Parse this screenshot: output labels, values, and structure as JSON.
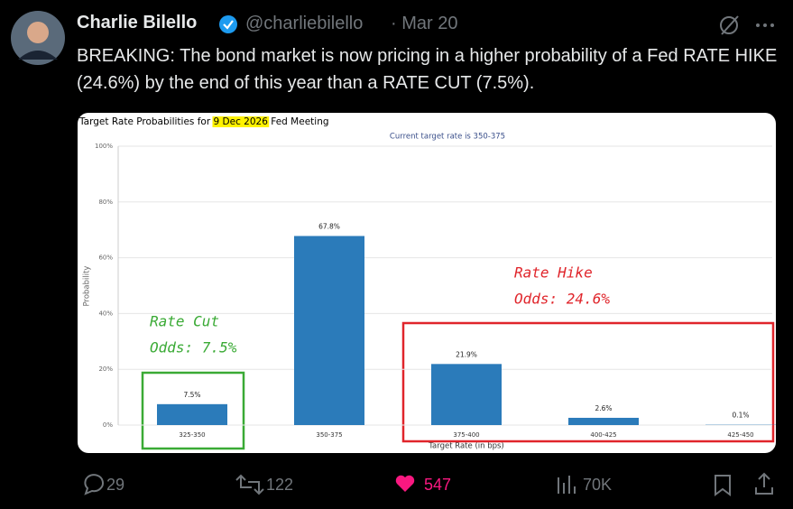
{
  "tweet": {
    "name": "Charlie Bilello",
    "handle": "@charliebilello",
    "date": "· Mar 20",
    "text": "BREAKING: The bond market is now pricing in a higher probability of a Fed RATE HIKE (24.6%) by the end of this year than a RATE CUT (7.5%).",
    "stats": {
      "replies": "29",
      "reposts": "122",
      "likes": "547",
      "views": "70K"
    }
  },
  "chart_data": {
    "type": "bar",
    "title": [
      "Target Rate Probabilities for",
      "9 Dec 2026",
      "Fed Meeting"
    ],
    "subtitle": "Current target rate is 350-375",
    "x_label": "Target Rate (in bps)",
    "y_label": "Probability",
    "categories": [
      "325-350",
      "350-375",
      "375-400",
      "400-425",
      "425-450"
    ],
    "values": [
      7.5,
      67.8,
      21.9,
      2.6,
      0.1
    ],
    "value_labels": [
      "7.5%",
      "67.8%",
      "21.9%",
      "2.6%",
      "0.1%"
    ],
    "color": "#2b7bba",
    "ylim": [
      0,
      100
    ],
    "yticks": [
      {
        "value": 0,
        "label": "0%"
      },
      {
        "value": 20,
        "label": "20%"
      },
      {
        "value": 40,
        "label": "40%"
      },
      {
        "value": 60,
        "label": "60%"
      },
      {
        "value": 80,
        "label": "80%"
      },
      {
        "value": 100,
        "label": "100%"
      }
    ],
    "annotations": [
      {
        "lines": [
          "Rate Cut",
          "Odds: 7.5%"
        ],
        "color": "#3aaa35"
      },
      {
        "lines": [
          "Rate Hike",
          "Odds: 24.6%"
        ],
        "color": "#e0252b"
      }
    ]
  }
}
